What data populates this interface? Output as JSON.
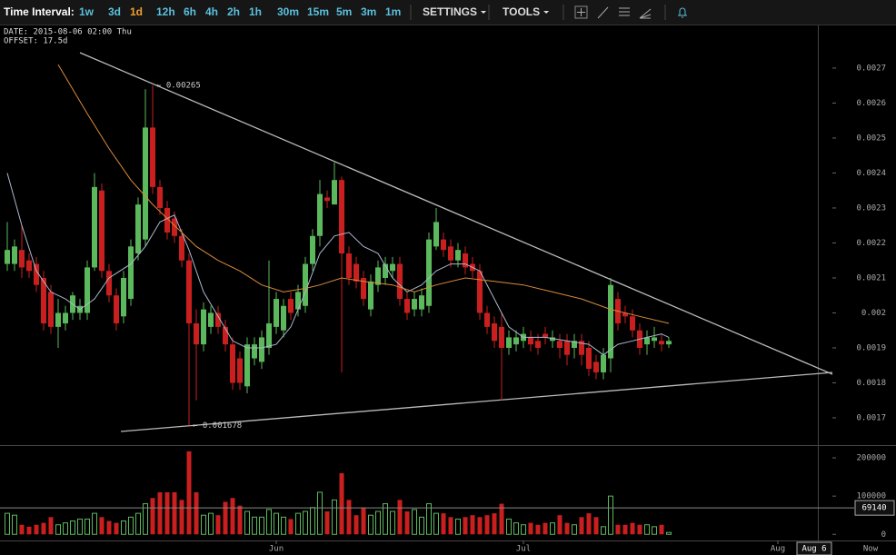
{
  "chart_data": {
    "type": "candlestick",
    "toolbar": {
      "label": "Time Interval:",
      "intervals": [
        "1w",
        "3d",
        "1d",
        "12h",
        "6h",
        "4h",
        "2h",
        "1h",
        "30m",
        "15m",
        "5m",
        "3m",
        "1m"
      ],
      "active": "1d",
      "menus": [
        "SETTINGS",
        "TOOLS"
      ]
    },
    "info": [
      "DATE: 2015-08-06 02:00 Thu",
      "OFFSET: 17.5d"
    ],
    "up_color": "#5cb85c",
    "down_color": "#c9201f",
    "xlim": [
      -1,
      111.5
    ],
    "xticks": [
      {
        "value": 37,
        "label": "Jun"
      },
      {
        "value": 71,
        "label": "Jul"
      },
      {
        "value": 106,
        "label": "Aug"
      }
    ],
    "crosshair": {
      "x": {
        "value": 111,
        "label": "Aug 6"
      },
      "volume": 69140
    },
    "now_label": "Now",
    "ylim": [
      0.001622,
      0.002822
    ],
    "yticks": [
      0.0017,
      0.0018,
      0.0019,
      0.002,
      0.0021,
      0.0022,
      0.0023,
      0.0024,
      0.0025,
      0.0026,
      0.0027
    ],
    "grid": false,
    "candles": {
      "open": [
        0.00214,
        0.00214,
        0.00218,
        0.00215,
        0.00214,
        0.0021,
        0.00206,
        0.00196,
        0.00197,
        0.002,
        0.002,
        0.002,
        0.00213,
        0.00235,
        0.00212,
        0.00205,
        0.00199,
        0.00204,
        0.00217,
        0.00221,
        0.00253,
        0.00236,
        0.0023,
        0.00227,
        0.00222,
        0.00215,
        0.00197,
        0.00191,
        0.00196,
        0.002,
        0.00196,
        0.00191,
        0.00187,
        0.00179,
        0.00187,
        0.00186,
        0.0019,
        0.00196,
        0.00195,
        0.00204,
        0.00201,
        0.00202,
        0.00214,
        0.00222,
        0.00233,
        0.00231,
        0.00238,
        0.00217,
        0.00214,
        0.0021,
        0.00201,
        0.00208,
        0.0021,
        0.00212,
        0.00214,
        0.00204,
        0.00201,
        0.00201,
        0.00202,
        0.00219,
        0.00221,
        0.00219,
        0.00215,
        0.00217,
        0.00214,
        0.00212,
        0.002,
        0.00197,
        0.00196,
        0.0019,
        0.00191,
        0.00192,
        0.00193,
        0.00192,
        0.00194,
        0.00192,
        0.00192,
        0.00192,
        0.0019,
        0.00192,
        0.0019,
        0.00186,
        0.00183,
        0.00187,
        0.00204,
        0.002,
        0.00199,
        0.00195,
        0.00191,
        0.00192,
        0.00192,
        0.00191
      ],
      "high": [
        0.00226,
        0.00221,
        0.00225,
        0.00217,
        0.00216,
        0.00212,
        0.00208,
        0.00204,
        0.00202,
        0.00206,
        0.00204,
        0.00215,
        0.0024,
        0.00237,
        0.00214,
        0.00207,
        0.00212,
        0.00221,
        0.00233,
        0.00264,
        0.00265,
        0.00238,
        0.00232,
        0.00229,
        0.00224,
        0.00217,
        0.00201,
        0.00203,
        0.00202,
        0.00202,
        0.00198,
        0.00193,
        0.00189,
        0.00193,
        0.00193,
        0.00195,
        0.00215,
        0.00206,
        0.00204,
        0.00206,
        0.00208,
        0.00216,
        0.00224,
        0.00238,
        0.00235,
        0.00243,
        0.00239,
        0.00219,
        0.00216,
        0.00212,
        0.00211,
        0.00215,
        0.00216,
        0.00216,
        0.00216,
        0.00206,
        0.00206,
        0.00207,
        0.00223,
        0.0023,
        0.00223,
        0.00221,
        0.0022,
        0.00219,
        0.00216,
        0.00214,
        0.00202,
        0.00199,
        0.002,
        0.00195,
        0.00195,
        0.00196,
        0.00195,
        0.00194,
        0.00196,
        0.00195,
        0.00194,
        0.00194,
        0.00194,
        0.00194,
        0.00192,
        0.00188,
        0.0019,
        0.0021,
        0.00206,
        0.00202,
        0.00201,
        0.00197,
        0.00195,
        0.00196,
        0.00194,
        0.00193
      ],
      "low": [
        0.00212,
        0.00212,
        0.0021,
        0.0021,
        0.00206,
        0.00195,
        0.00194,
        0.0019,
        0.00195,
        0.00198,
        0.00198,
        0.00198,
        0.00212,
        0.0021,
        0.00203,
        0.00195,
        0.00197,
        0.00202,
        0.00215,
        0.00219,
        0.00234,
        0.00228,
        0.00221,
        0.0022,
        0.00213,
        0.001678,
        0.00175,
        0.00189,
        0.00194,
        0.00194,
        0.00189,
        0.00178,
        0.00178,
        0.00177,
        0.00185,
        0.00184,
        0.00188,
        0.00194,
        0.00193,
        0.00198,
        0.00199,
        0.002,
        0.00212,
        0.00219,
        0.0023,
        0.00231,
        0.00183,
        0.00208,
        0.00207,
        0.00202,
        0.00199,
        0.00206,
        0.00208,
        0.0021,
        0.00202,
        0.00198,
        0.00199,
        0.00199,
        0.002,
        0.00218,
        0.00216,
        0.00213,
        0.00213,
        0.00211,
        0.0021,
        0.00198,
        0.00194,
        0.0019,
        0.00175,
        0.00188,
        0.00189,
        0.0019,
        0.00189,
        0.00188,
        0.00191,
        0.0019,
        0.00187,
        0.00185,
        0.00187,
        0.00185,
        0.00182,
        0.00181,
        0.00181,
        0.00183,
        0.00195,
        0.00197,
        0.00193,
        0.00188,
        0.00188,
        0.0019,
        0.00189,
        0.0019
      ],
      "close": [
        0.00218,
        0.00219,
        0.00213,
        0.00212,
        0.00208,
        0.00197,
        0.00196,
        0.002,
        0.002,
        0.00205,
        0.00202,
        0.00213,
        0.00236,
        0.00212,
        0.00205,
        0.00197,
        0.0021,
        0.00219,
        0.00231,
        0.00253,
        0.00236,
        0.0023,
        0.00223,
        0.00222,
        0.00215,
        0.00197,
        0.00191,
        0.00201,
        0.002,
        0.00196,
        0.00191,
        0.0018,
        0.0018,
        0.00191,
        0.00191,
        0.00193,
        0.00197,
        0.00204,
        0.00202,
        0.002,
        0.00206,
        0.00214,
        0.00222,
        0.00234,
        0.00232,
        0.00238,
        0.00217,
        0.0021,
        0.00209,
        0.00204,
        0.00209,
        0.00213,
        0.00214,
        0.00214,
        0.00204,
        0.002,
        0.00204,
        0.00205,
        0.00221,
        0.00226,
        0.00218,
        0.00215,
        0.00218,
        0.00213,
        0.00212,
        0.002,
        0.00196,
        0.00192,
        0.0019,
        0.00193,
        0.00193,
        0.00194,
        0.00191,
        0.0019,
        0.00193,
        0.00193,
        0.0019,
        0.00188,
        0.00192,
        0.00188,
        0.00184,
        0.00183,
        0.00188,
        0.00208,
        0.00197,
        0.00199,
        0.00195,
        0.0019,
        0.00193,
        0.00193,
        0.00191,
        0.00192
      ]
    },
    "ma": [
      {
        "color": "#aab8d0",
        "x": [
          0,
          2,
          4,
          6,
          8,
          10,
          12,
          14,
          17,
          19,
          21,
          23,
          25,
          27,
          29,
          31,
          33,
          35,
          37,
          39,
          41,
          43,
          45,
          47,
          49,
          51,
          53,
          55,
          57,
          59,
          61,
          63,
          65,
          67,
          69,
          71,
          74,
          77,
          80,
          82,
          84,
          86,
          88,
          90,
          91
        ],
        "values": [
          0.0024,
          0.00225,
          0.00212,
          0.00206,
          0.00204,
          0.00201,
          0.00204,
          0.0021,
          0.00214,
          0.00219,
          0.00226,
          0.00228,
          0.00218,
          0.00206,
          0.00199,
          0.00192,
          0.0019,
          0.0019,
          0.00191,
          0.00196,
          0.00206,
          0.00217,
          0.00222,
          0.00223,
          0.00219,
          0.00217,
          0.0021,
          0.00206,
          0.00208,
          0.00212,
          0.00214,
          0.00214,
          0.00212,
          0.00204,
          0.00196,
          0.00193,
          0.00193,
          0.00192,
          0.00191,
          0.00188,
          0.00191,
          0.00192,
          0.00193,
          0.00194,
          0.00193
        ]
      },
      {
        "color": "#d98c3a",
        "x": [
          7,
          9,
          11,
          14,
          17,
          20,
          23,
          26,
          29,
          32,
          35,
          38,
          41,
          43,
          46,
          49,
          53,
          56,
          59,
          63,
          67,
          71,
          75,
          79,
          83,
          87,
          91
        ],
        "values": [
          0.00271,
          0.00264,
          0.00257,
          0.00247,
          0.00238,
          0.00231,
          0.00225,
          0.00219,
          0.00215,
          0.00212,
          0.00208,
          0.00206,
          0.00207,
          0.00208,
          0.0021,
          0.00209,
          0.00208,
          0.00206,
          0.00208,
          0.0021,
          0.00209,
          0.00208,
          0.00206,
          0.00204,
          0.00201,
          0.00199,
          0.00197
        ]
      }
    ],
    "annotations": [
      {
        "label": "← 0.00265",
        "value": 0.00265,
        "x": 20
      },
      {
        "label": "← 0.001678",
        "value": 0.001678,
        "x": 25
      }
    ],
    "volume": {
      "values": [
        55000,
        50000,
        25000,
        20000,
        25000,
        30000,
        45000,
        25000,
        30000,
        35000,
        40000,
        40000,
        55000,
        45000,
        35000,
        30000,
        35000,
        45000,
        55000,
        80000,
        95000,
        110000,
        110000,
        110000,
        90000,
        217000,
        110000,
        50000,
        55000,
        50000,
        85000,
        95000,
        75000,
        60000,
        45000,
        45000,
        65000,
        55000,
        45000,
        40000,
        55000,
        60000,
        70000,
        110000,
        60000,
        90000,
        160000,
        90000,
        50000,
        70000,
        50000,
        60000,
        80000,
        60000,
        90000,
        60000,
        65000,
        45000,
        80000,
        55000,
        55000,
        45000,
        40000,
        45000,
        50000,
        45000,
        50000,
        55000,
        80000,
        40000,
        30000,
        25000,
        30000,
        25000,
        30000,
        30000,
        50000,
        30000,
        25000,
        45000,
        55000,
        45000,
        20000,
        100000,
        25000,
        25000,
        30000,
        25000,
        25000,
        20000,
        25000,
        5000
      ],
      "ylim": [
        -16000,
        231000
      ],
      "yticks": [
        0,
        100000,
        200000
      ]
    }
  }
}
